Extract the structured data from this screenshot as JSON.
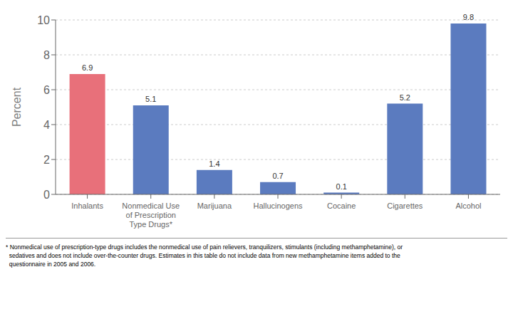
{
  "chart_data": {
    "type": "bar",
    "categories": [
      "Inhalants",
      "Nonmedical Use\nof Prescription\nType Drugs*",
      "Marijuana",
      "Hallucinogens",
      "Cocaine",
      "Cigarettes",
      "Alcohol"
    ],
    "values": [
      6.9,
      5.1,
      1.4,
      0.7,
      0.1,
      5.2,
      9.8
    ],
    "colors": [
      "#e8707a",
      "#5b7bbf",
      "#5b7bbf",
      "#5b7bbf",
      "#5b7bbf",
      "#5b7bbf",
      "#5b7bbf"
    ],
    "ylabel": "Percent",
    "ylim": [
      0,
      10
    ],
    "yticks": [
      0,
      2,
      4,
      6,
      8,
      10
    ],
    "grid": true,
    "data_labels": true,
    "annotations": [
      "* Nonmedical use of prescription-type drugs includes the nonmedical use of pain relievers, tranquilizers, stimulants (including methamphetamine), or",
      "  sedatives and does not include over-the-counter drugs. Estimates in this table do not include data from new methamphetamine items added to the",
      "  questionnaire in 2005 and 2006."
    ]
  }
}
